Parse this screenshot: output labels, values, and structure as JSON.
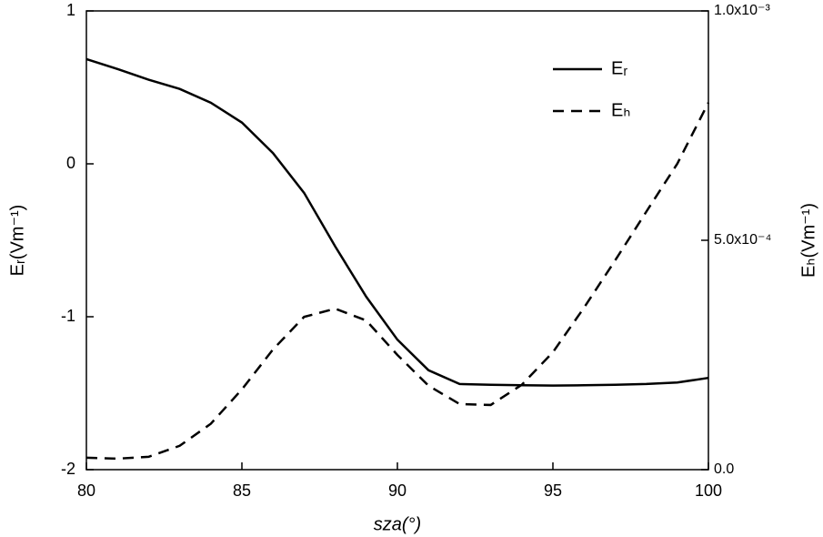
{
  "chart_data": {
    "type": "line",
    "xlabel": "sza(°)",
    "ylabel": "Eᵣ(Vm⁻¹)",
    "y2label": "Eₕ(Vm⁻¹)",
    "x": [
      80,
      81,
      82,
      83,
      84,
      85,
      86,
      87,
      88,
      89,
      90,
      91,
      92,
      93,
      94,
      95,
      96,
      97,
      98,
      99,
      100
    ],
    "series": [
      {
        "name": "Eᵣ",
        "color": "#000000",
        "dash": false,
        "values": [
          0.685,
          0.62,
          0.55,
          0.49,
          0.4,
          0.27,
          0.07,
          -0.19,
          -0.54,
          -0.87,
          -1.15,
          -1.35,
          -1.44,
          -1.445,
          -1.448,
          -1.45,
          -1.448,
          -1.445,
          -1.44,
          -1.43,
          -1.4
        ]
      },
      {
        "name": "Eₕ",
        "color": "#000000",
        "dash": true,
        "axis": "y2",
        "values": [
          2.6e-05,
          2.4e-05,
          2.8e-05,
          5.2e-05,
          0.0001,
          0.000175,
          0.000262,
          0.000333,
          0.000351,
          0.000325,
          0.00025,
          0.000183,
          0.000143,
          0.000141,
          0.000185,
          0.000256,
          0.000353,
          0.000456,
          0.000562,
          0.000667,
          0.0008
        ]
      }
    ],
    "xlim": [
      80,
      100
    ],
    "xticks": [
      80,
      85,
      90,
      95,
      100
    ],
    "ylim": [
      -2,
      1
    ],
    "yticks": [
      -2,
      -1,
      0,
      1
    ],
    "y2lim": [
      0,
      0.001
    ],
    "y2ticks": [
      {
        "value": 0,
        "label": "0.0"
      },
      {
        "value": 0.0005,
        "label": "5.0x10⁻⁴"
      },
      {
        "value": 0.001,
        "label": "1.0x10⁻³"
      }
    ],
    "legend": "upper right"
  }
}
